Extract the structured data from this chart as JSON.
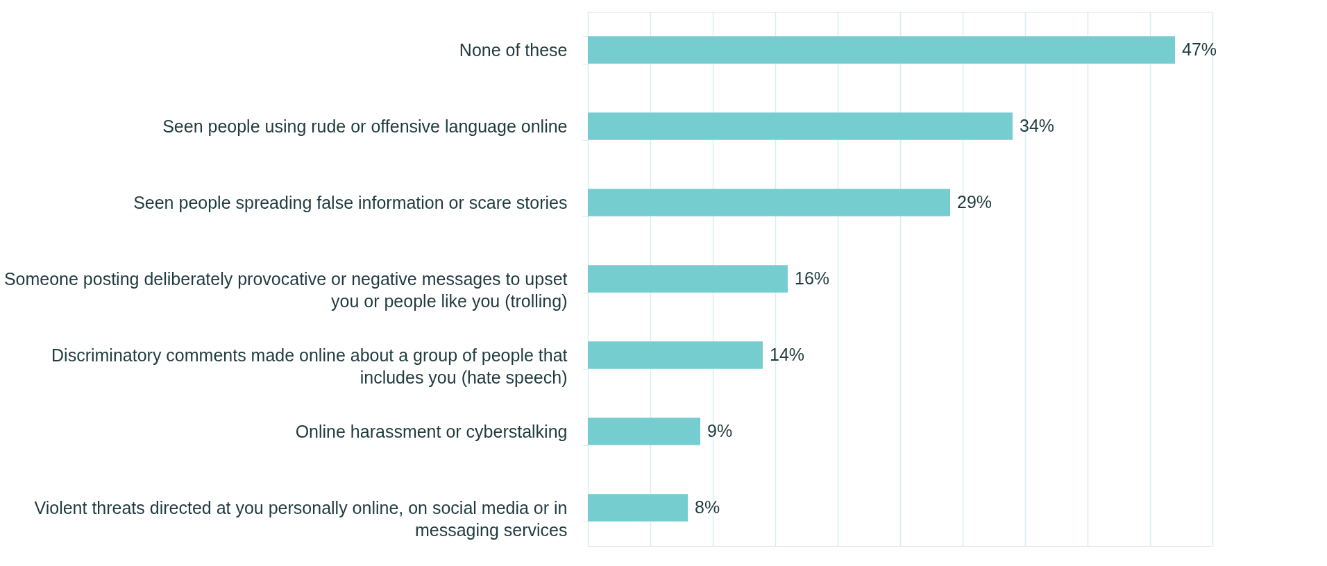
{
  "chart_data": {
    "type": "bar",
    "orientation": "horizontal",
    "categories": [
      "None of these",
      "Seen people using rude or offensive language online",
      "Seen people spreading false information or scare stories",
      "Someone posting deliberately provocative or negative messages to upset you or people like you (trolling)",
      "Discriminatory comments made online about a group of people that includes you (hate speech)",
      "Online harassment or cyberstalking",
      "Violent threats directed at you personally online, on social media or in messaging services"
    ],
    "values": [
      47,
      34,
      29,
      16,
      14,
      9,
      8
    ],
    "color": "#76cdd0",
    "value_labels": [
      "47%",
      "34%",
      "29%",
      "16%",
      "14%",
      "9%",
      "8%"
    ],
    "xlim": [
      0,
      50
    ],
    "xticks": [
      {
        "value": 0,
        "label": null
      },
      {
        "value": 5,
        "label": null
      },
      {
        "value": 10,
        "label": null
      },
      {
        "value": 15,
        "label": null
      },
      {
        "value": 20,
        "label": null
      },
      {
        "value": 25,
        "label": null
      },
      {
        "value": 30,
        "label": null
      },
      {
        "value": 35,
        "label": null
      },
      {
        "value": 40,
        "label": null
      },
      {
        "value": 45,
        "label": null
      },
      {
        "value": 50,
        "label": null
      }
    ],
    "grid": "x",
    "tick_labels": "y"
  }
}
